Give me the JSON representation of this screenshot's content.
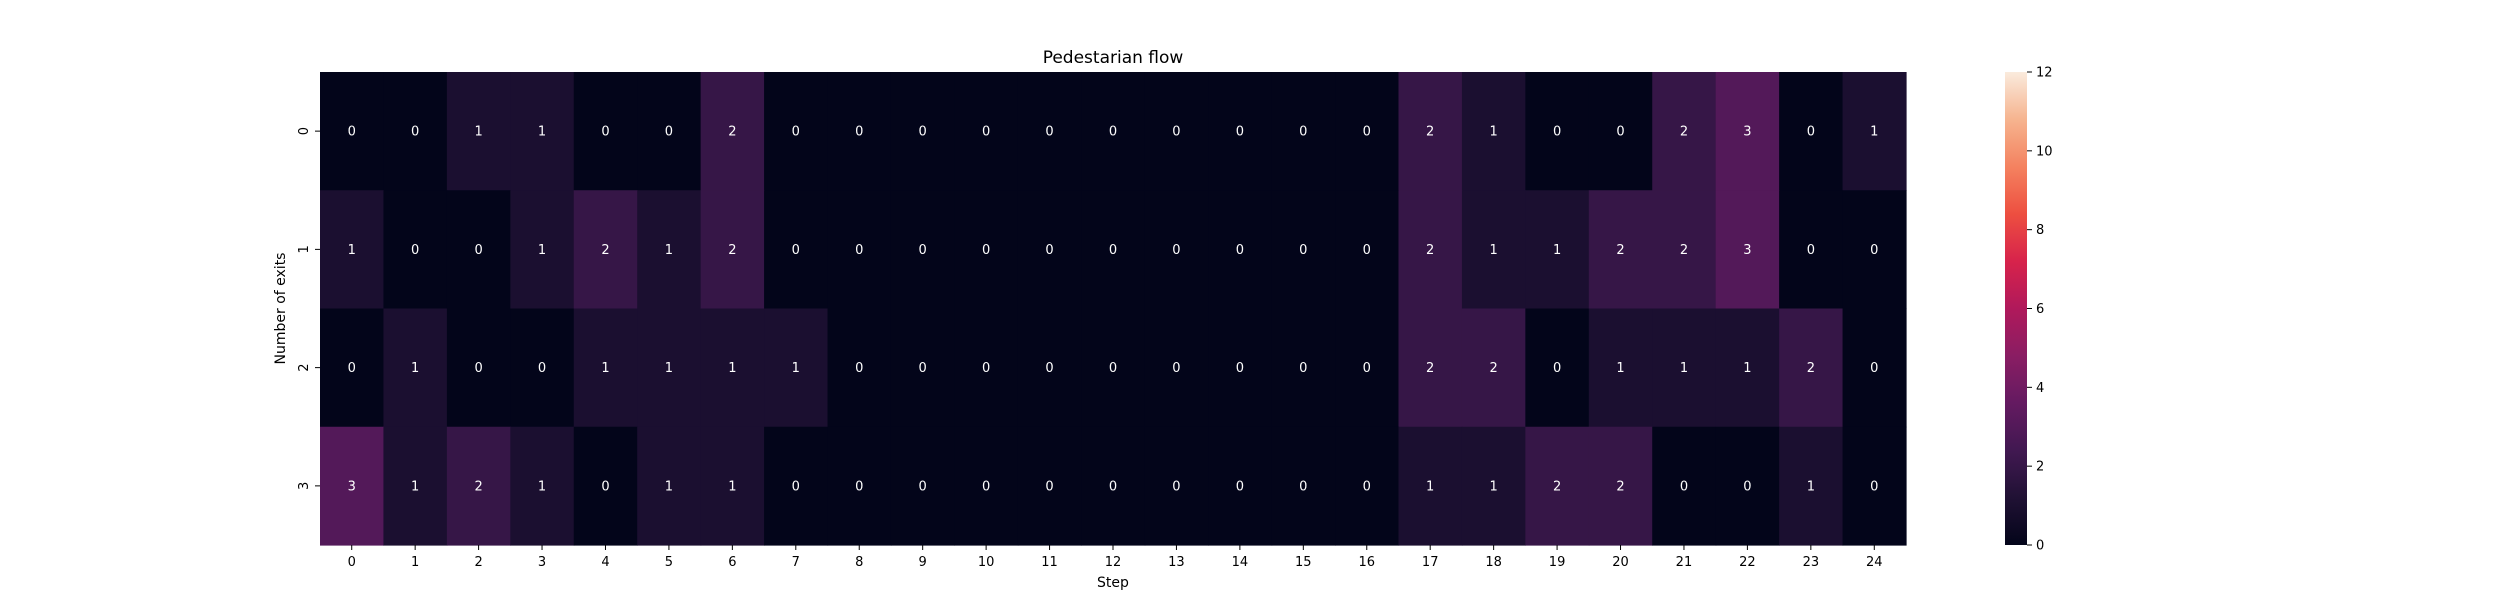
{
  "chart_data": {
    "type": "heatmap",
    "title": "Pedestarian flow",
    "xlabel": "Step",
    "ylabel": "Number of exits",
    "x_categories": [
      "0",
      "1",
      "2",
      "3",
      "4",
      "5",
      "6",
      "7",
      "8",
      "9",
      "10",
      "11",
      "12",
      "13",
      "14",
      "15",
      "16",
      "17",
      "18",
      "19",
      "20",
      "21",
      "22",
      "23",
      "24"
    ],
    "y_categories": [
      "0",
      "1",
      "2",
      "3"
    ],
    "values": [
      [
        0,
        0,
        1,
        1,
        0,
        0,
        2,
        0,
        0,
        0,
        0,
        0,
        0,
        0,
        0,
        0,
        0,
        2,
        1,
        0,
        0,
        2,
        3,
        0,
        1
      ],
      [
        1,
        0,
        0,
        1,
        2,
        1,
        2,
        0,
        0,
        0,
        0,
        0,
        0,
        0,
        0,
        0,
        0,
        2,
        1,
        1,
        2,
        2,
        3,
        0,
        0
      ],
      [
        0,
        1,
        0,
        0,
        1,
        1,
        1,
        1,
        0,
        0,
        0,
        0,
        0,
        0,
        0,
        0,
        0,
        2,
        2,
        0,
        1,
        1,
        1,
        2,
        0
      ],
      [
        3,
        1,
        2,
        1,
        0,
        1,
        1,
        0,
        0,
        0,
        0,
        0,
        0,
        0,
        0,
        0,
        0,
        1,
        1,
        2,
        2,
        0,
        0,
        1,
        0
      ]
    ],
    "annotated": true,
    "colorbar": {
      "min": 0,
      "max": 12,
      "ticks": [
        0,
        2,
        4,
        6,
        8,
        10,
        12
      ],
      "colormap": "rocket"
    }
  }
}
